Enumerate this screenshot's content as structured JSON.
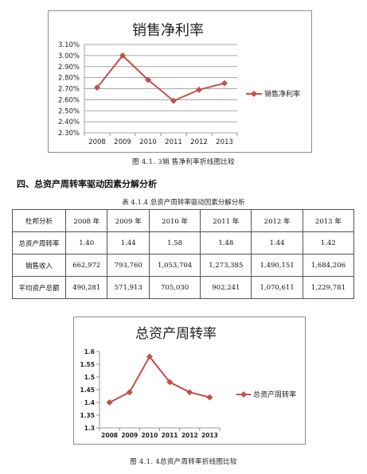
{
  "chart1": {
    "chart_data": {
      "type": "line",
      "title": "销售净利率",
      "categories": [
        "2008",
        "2009",
        "2010",
        "2011",
        "2012",
        "2013"
      ],
      "series": [
        {
          "name": "销售净利率",
          "values": [
            2.71,
            3.0,
            2.78,
            2.59,
            2.69,
            2.75
          ]
        }
      ],
      "yticks": [
        "3.10%",
        "3.00%",
        "2.90%",
        "2.80%",
        "2.70%",
        "2.60%",
        "2.50%",
        "2.40%",
        "2.30%"
      ],
      "ylim": [
        2.3,
        3.1
      ],
      "grid": true,
      "legend": "right",
      "color": "#c0504d"
    },
    "caption": "图 4.1. 3销 售净利率折线图比较"
  },
  "section_heading": "四、总资产周转率驱动因素分解分析",
  "table": {
    "title": "表 4.1.4  总资产周转率驱动因素分解分析",
    "headers": [
      "杜邦分析",
      "2008 年",
      "2009 年",
      "2010 年",
      "2011 年",
      "2012 年",
      "2013 年"
    ],
    "rows": [
      [
        "总资产周转率",
        "1.40",
        "1.44",
        "1.58",
        "1.48",
        "1.44",
        "1.42"
      ],
      [
        "销售收入",
        "662,972",
        "793,760",
        "1,053,704",
        "1,273,385",
        "1,490,151",
        "1,684,206"
      ],
      [
        "平均资产总额",
        "490,281",
        "571,913",
        "705,030",
        "902,241",
        "1,070,611",
        "1,229,781"
      ]
    ]
  },
  "chart2": {
    "chart_data": {
      "type": "line",
      "title": "总资产周转率",
      "categories": [
        "2008",
        "2009",
        "2010",
        "2011",
        "2012",
        "2013"
      ],
      "series": [
        {
          "name": "总资产周转率",
          "values": [
            1.4,
            1.44,
            1.58,
            1.48,
            1.44,
            1.42
          ]
        }
      ],
      "yticks": [
        "1.6",
        "1.55",
        "1.5",
        "1.45",
        "1.4",
        "1.35",
        "1.3"
      ],
      "ylim": [
        1.3,
        1.6
      ],
      "grid": false,
      "legend": "right",
      "color": "#c0504d"
    },
    "caption": "图 4.1. 4总资产周转率折线图比较"
  }
}
